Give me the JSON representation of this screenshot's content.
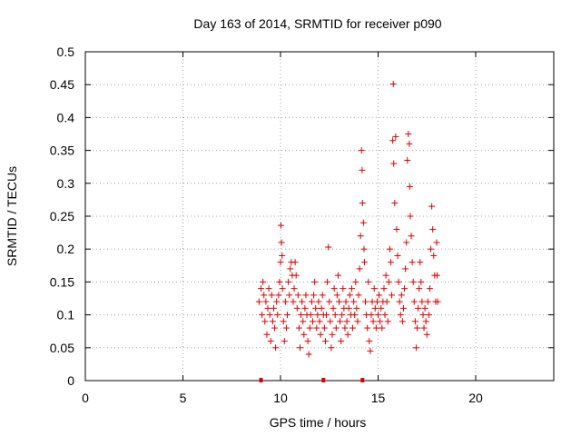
{
  "chart_data": {
    "type": "scatter",
    "title": "Day 163 of 2014, SRMTID for receiver p090",
    "xlabel": "GPS time / hours",
    "ylabel": "SRMTID / TECUs",
    "xlim": [
      0,
      24
    ],
    "ylim": [
      0,
      0.5
    ],
    "xticks": [
      0,
      5,
      10,
      15,
      20
    ],
    "yticks": [
      0,
      0.05,
      0.1,
      0.15,
      0.2,
      0.25,
      0.3,
      0.35,
      0.4,
      0.45,
      0.5
    ],
    "ytick_labels": [
      "0",
      "0.05",
      "0.1",
      "0.15",
      "0.2",
      "0.25",
      "0.3",
      "0.35",
      "0.4",
      "0.45",
      "0.5"
    ],
    "grid": true,
    "marker": "+",
    "color": "#dd0000",
    "x_axis_markers": [
      9.0,
      12.2,
      14.2
    ],
    "series": [
      {
        "name": "SRMTID",
        "points": [
          [
            8.9,
            0.12
          ],
          [
            9.0,
            0.14
          ],
          [
            9.05,
            0.1
          ],
          [
            9.1,
            0.15
          ],
          [
            9.15,
            0.13
          ],
          [
            9.2,
            0.09
          ],
          [
            9.25,
            0.12
          ],
          [
            9.3,
            0.07
          ],
          [
            9.35,
            0.11
          ],
          [
            9.4,
            0.14
          ],
          [
            9.45,
            0.1
          ],
          [
            9.5,
            0.06
          ],
          [
            9.55,
            0.13
          ],
          [
            9.6,
            0.09
          ],
          [
            9.65,
            0.11
          ],
          [
            9.7,
            0.08
          ],
          [
            9.75,
            0.05
          ],
          [
            9.8,
            0.12
          ],
          [
            9.85,
            0.1
          ],
          [
            9.9,
            0.13
          ],
          [
            9.95,
            0.15
          ],
          [
            10.0,
            0.18
          ],
          [
            10.02,
            0.236
          ],
          [
            10.05,
            0.21
          ],
          [
            10.08,
            0.19
          ],
          [
            10.1,
            0.14
          ],
          [
            10.15,
            0.09
          ],
          [
            10.2,
            0.06
          ],
          [
            10.25,
            0.12
          ],
          [
            10.3,
            0.08
          ],
          [
            10.35,
            0.1
          ],
          [
            10.4,
            0.15
          ],
          [
            10.45,
            0.13
          ],
          [
            10.5,
            0.17
          ],
          [
            10.55,
            0.18
          ],
          [
            10.6,
            0.16
          ],
          [
            10.65,
            0.12
          ],
          [
            10.7,
            0.14
          ],
          [
            10.75,
            0.18
          ],
          [
            10.8,
            0.16
          ],
          [
            10.85,
            0.11
          ],
          [
            10.9,
            0.13
          ],
          [
            10.95,
            0.08
          ],
          [
            11.0,
            0.05
          ],
          [
            11.05,
            0.1
          ],
          [
            11.1,
            0.12
          ],
          [
            11.15,
            0.09
          ],
          [
            11.2,
            0.07
          ],
          [
            11.25,
            0.11
          ],
          [
            11.3,
            0.13
          ],
          [
            11.35,
            0.1
          ],
          [
            11.4,
            0.06
          ],
          [
            11.45,
            0.04
          ],
          [
            11.5,
            0.08
          ],
          [
            11.55,
            0.1
          ],
          [
            11.6,
            0.12
          ],
          [
            11.65,
            0.09
          ],
          [
            11.7,
            0.13
          ],
          [
            11.75,
            0.15
          ],
          [
            11.8,
            0.11
          ],
          [
            11.85,
            0.08
          ],
          [
            11.9,
            0.1
          ],
          [
            11.95,
            0.12
          ],
          [
            12.0,
            0.09
          ],
          [
            12.05,
            0.07
          ],
          [
            12.1,
            0.11
          ],
          [
            12.15,
            0.13
          ],
          [
            12.2,
            0.1
          ],
          [
            12.25,
            0.08
          ],
          [
            12.3,
            0.06
          ],
          [
            12.35,
            0.1
          ],
          [
            12.4,
            0.15
          ],
          [
            12.45,
            0.203
          ],
          [
            12.5,
            0.12
          ],
          [
            12.55,
            0.09
          ],
          [
            12.6,
            0.05
          ],
          [
            12.65,
            0.07
          ],
          [
            12.7,
            0.11
          ],
          [
            12.75,
            0.14
          ],
          [
            12.8,
            0.1
          ],
          [
            12.85,
            0.08
          ],
          [
            12.9,
            0.13
          ],
          [
            12.95,
            0.16
          ],
          [
            13.0,
            0.12
          ],
          [
            13.05,
            0.09
          ],
          [
            13.1,
            0.06
          ],
          [
            13.15,
            0.1
          ],
          [
            13.2,
            0.14
          ],
          [
            13.25,
            0.11
          ],
          [
            13.3,
            0.08
          ],
          [
            13.35,
            0.12
          ],
          [
            13.4,
            0.09
          ],
          [
            13.45,
            0.07
          ],
          [
            13.5,
            0.11
          ],
          [
            13.55,
            0.13
          ],
          [
            13.6,
            0.1
          ],
          [
            13.65,
            0.14
          ],
          [
            13.7,
            0.08
          ],
          [
            13.75,
            0.12
          ],
          [
            13.8,
            0.1
          ],
          [
            13.85,
            0.15
          ],
          [
            13.9,
            0.11
          ],
          [
            13.95,
            0.09
          ],
          [
            14.0,
            0.13
          ],
          [
            14.05,
            0.17
          ],
          [
            14.1,
            0.22
          ],
          [
            14.15,
            0.35
          ],
          [
            14.18,
            0.32
          ],
          [
            14.2,
            0.27
          ],
          [
            14.25,
            0.24
          ],
          [
            14.28,
            0.2
          ],
          [
            14.3,
            0.18
          ],
          [
            14.35,
            0.12
          ],
          [
            14.4,
            0.1
          ],
          [
            14.45,
            0.08
          ],
          [
            14.5,
            0.15
          ],
          [
            14.55,
            0.06
          ],
          [
            14.6,
            0.045
          ],
          [
            14.65,
            0.1
          ],
          [
            14.7,
            0.12
          ],
          [
            14.75,
            0.09
          ],
          [
            14.8,
            0.14
          ],
          [
            14.85,
            0.11
          ],
          [
            14.9,
            0.08
          ],
          [
            14.95,
            0.12
          ],
          [
            15.0,
            0.1
          ],
          [
            15.05,
            0.13
          ],
          [
            15.1,
            0.09
          ],
          [
            15.15,
            0.11
          ],
          [
            15.2,
            0.08
          ],
          [
            15.25,
            0.12
          ],
          [
            15.3,
            0.14
          ],
          [
            15.35,
            0.1
          ],
          [
            15.4,
            0.16
          ],
          [
            15.45,
            0.12
          ],
          [
            15.5,
            0.09
          ],
          [
            15.55,
            0.15
          ],
          [
            15.6,
            0.2
          ],
          [
            15.65,
            0.18
          ],
          [
            15.7,
            0.13
          ],
          [
            15.75,
            0.365
          ],
          [
            15.78,
            0.451
          ],
          [
            15.8,
            0.33
          ],
          [
            15.85,
            0.27
          ],
          [
            15.9,
            0.371
          ],
          [
            15.95,
            0.23
          ],
          [
            16.0,
            0.19
          ],
          [
            16.05,
            0.15
          ],
          [
            16.1,
            0.12
          ],
          [
            16.15,
            0.1
          ],
          [
            16.2,
            0.13
          ],
          [
            16.25,
            0.09
          ],
          [
            16.3,
            0.11
          ],
          [
            16.35,
            0.14
          ],
          [
            16.4,
            0.17
          ],
          [
            16.45,
            0.21
          ],
          [
            16.5,
            0.335
          ],
          [
            16.55,
            0.375
          ],
          [
            16.6,
            0.36
          ],
          [
            16.62,
            0.295
          ],
          [
            16.65,
            0.25
          ],
          [
            16.7,
            0.22
          ],
          [
            16.75,
            0.18
          ],
          [
            16.8,
            0.15
          ],
          [
            16.85,
            0.12
          ],
          [
            16.9,
            0.09
          ],
          [
            16.95,
            0.05
          ],
          [
            17.0,
            0.08
          ],
          [
            17.05,
            0.11
          ],
          [
            17.1,
            0.14
          ],
          [
            17.15,
            0.18
          ],
          [
            17.2,
            0.15
          ],
          [
            17.25,
            0.12
          ],
          [
            17.3,
            0.1
          ],
          [
            17.35,
            0.08
          ],
          [
            17.4,
            0.11
          ],
          [
            17.45,
            0.09
          ],
          [
            17.5,
            0.07
          ],
          [
            17.55,
            0.12
          ],
          [
            17.6,
            0.1
          ],
          [
            17.65,
            0.14
          ],
          [
            17.7,
            0.2
          ],
          [
            17.75,
            0.265
          ],
          [
            17.8,
            0.23
          ],
          [
            17.85,
            0.19
          ],
          [
            17.9,
            0.16
          ],
          [
            17.95,
            0.12
          ],
          [
            18.0,
            0.21
          ],
          [
            18.02,
            0.16
          ],
          [
            18.05,
            0.12
          ]
        ]
      }
    ]
  }
}
